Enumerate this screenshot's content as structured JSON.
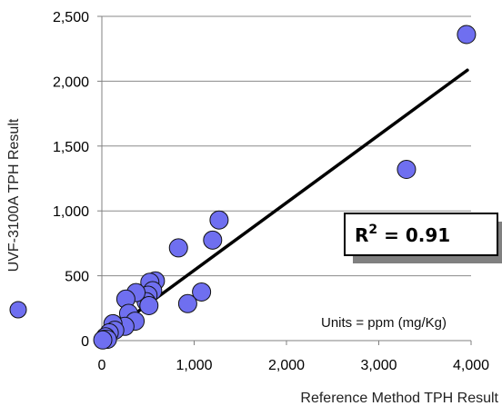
{
  "chart_data": {
    "type": "scatter",
    "title": "",
    "xlabel": "Reference Method TPH Result",
    "ylabel": "UVF-3100A TPH Result",
    "xlim": [
      0,
      4000
    ],
    "ylim": [
      0,
      2500
    ],
    "x_ticks": [
      0,
      1000,
      2000,
      3000,
      4000
    ],
    "y_ticks": [
      0,
      500,
      1000,
      1500,
      2000,
      2500
    ],
    "x_tick_labels": [
      "0",
      "1,000",
      "2,000",
      "3,000",
      "4,000"
    ],
    "y_tick_labels": [
      "0",
      "500",
      "1,000",
      "1,500",
      "2,000",
      "2,500"
    ],
    "grid": "horizontal",
    "legend": "marker beside y-axis title",
    "marker_color": "#6f6ff0",
    "marker_edge": "#111111",
    "series": [
      {
        "points": [
          {
            "x": 3950,
            "y": 2360
          },
          {
            "x": 3300,
            "y": 1320
          },
          {
            "x": 1270,
            "y": 930
          },
          {
            "x": 1200,
            "y": 775
          },
          {
            "x": 830,
            "y": 715
          },
          {
            "x": 1080,
            "y": 375
          },
          {
            "x": 930,
            "y": 285
          },
          {
            "x": 580,
            "y": 460
          },
          {
            "x": 520,
            "y": 450
          },
          {
            "x": 550,
            "y": 385
          },
          {
            "x": 500,
            "y": 350
          },
          {
            "x": 480,
            "y": 300
          },
          {
            "x": 510,
            "y": 270
          },
          {
            "x": 370,
            "y": 370
          },
          {
            "x": 260,
            "y": 320
          },
          {
            "x": 290,
            "y": 210
          },
          {
            "x": 360,
            "y": 150
          },
          {
            "x": 250,
            "y": 110
          },
          {
            "x": 120,
            "y": 130
          },
          {
            "x": 140,
            "y": 80
          },
          {
            "x": 80,
            "y": 60
          },
          {
            "x": 40,
            "y": 30
          },
          {
            "x": 20,
            "y": 10
          },
          {
            "x": 60,
            "y": 10
          },
          {
            "x": 10,
            "y": 5
          }
        ]
      }
    ],
    "trendline": {
      "x": [
        0,
        3960
      ],
      "y": [
        20,
        2085
      ],
      "color": "#000000"
    },
    "annotations": {
      "r2_prefix": "R",
      "r2_superscript": "2",
      "r2_value": " = 0.91",
      "units": "Units = ppm (mg/Kg)"
    }
  }
}
